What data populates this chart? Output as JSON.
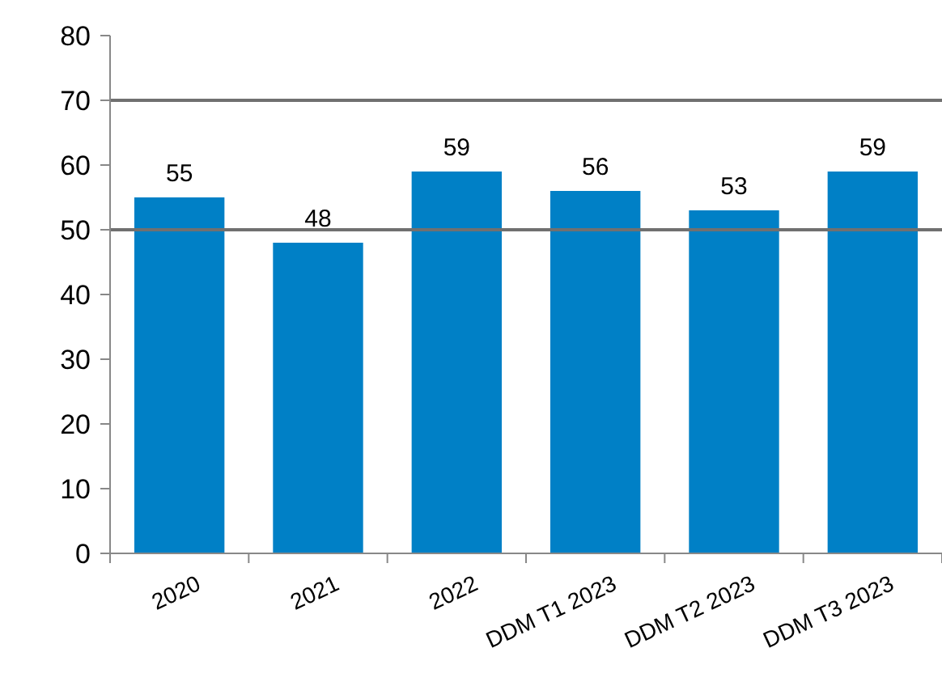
{
  "chart_data": {
    "type": "bar",
    "categories": [
      "2020",
      "2021",
      "2022",
      "DDM T1 2023",
      "DDM T2 2023",
      "DDM T3 2023"
    ],
    "values": [
      55,
      48,
      59,
      56,
      53,
      59
    ],
    "color": "#0080c6",
    "data_labels": true,
    "ylim": [
      0,
      80
    ],
    "yticks": [
      0,
      10,
      20,
      30,
      40,
      50,
      60,
      70,
      80
    ],
    "grid": false,
    "ref_lines": [
      {
        "axis": "y",
        "value": 70,
        "color": "#707070"
      },
      {
        "axis": "y",
        "value": 50,
        "color": "#707070"
      }
    ]
  }
}
